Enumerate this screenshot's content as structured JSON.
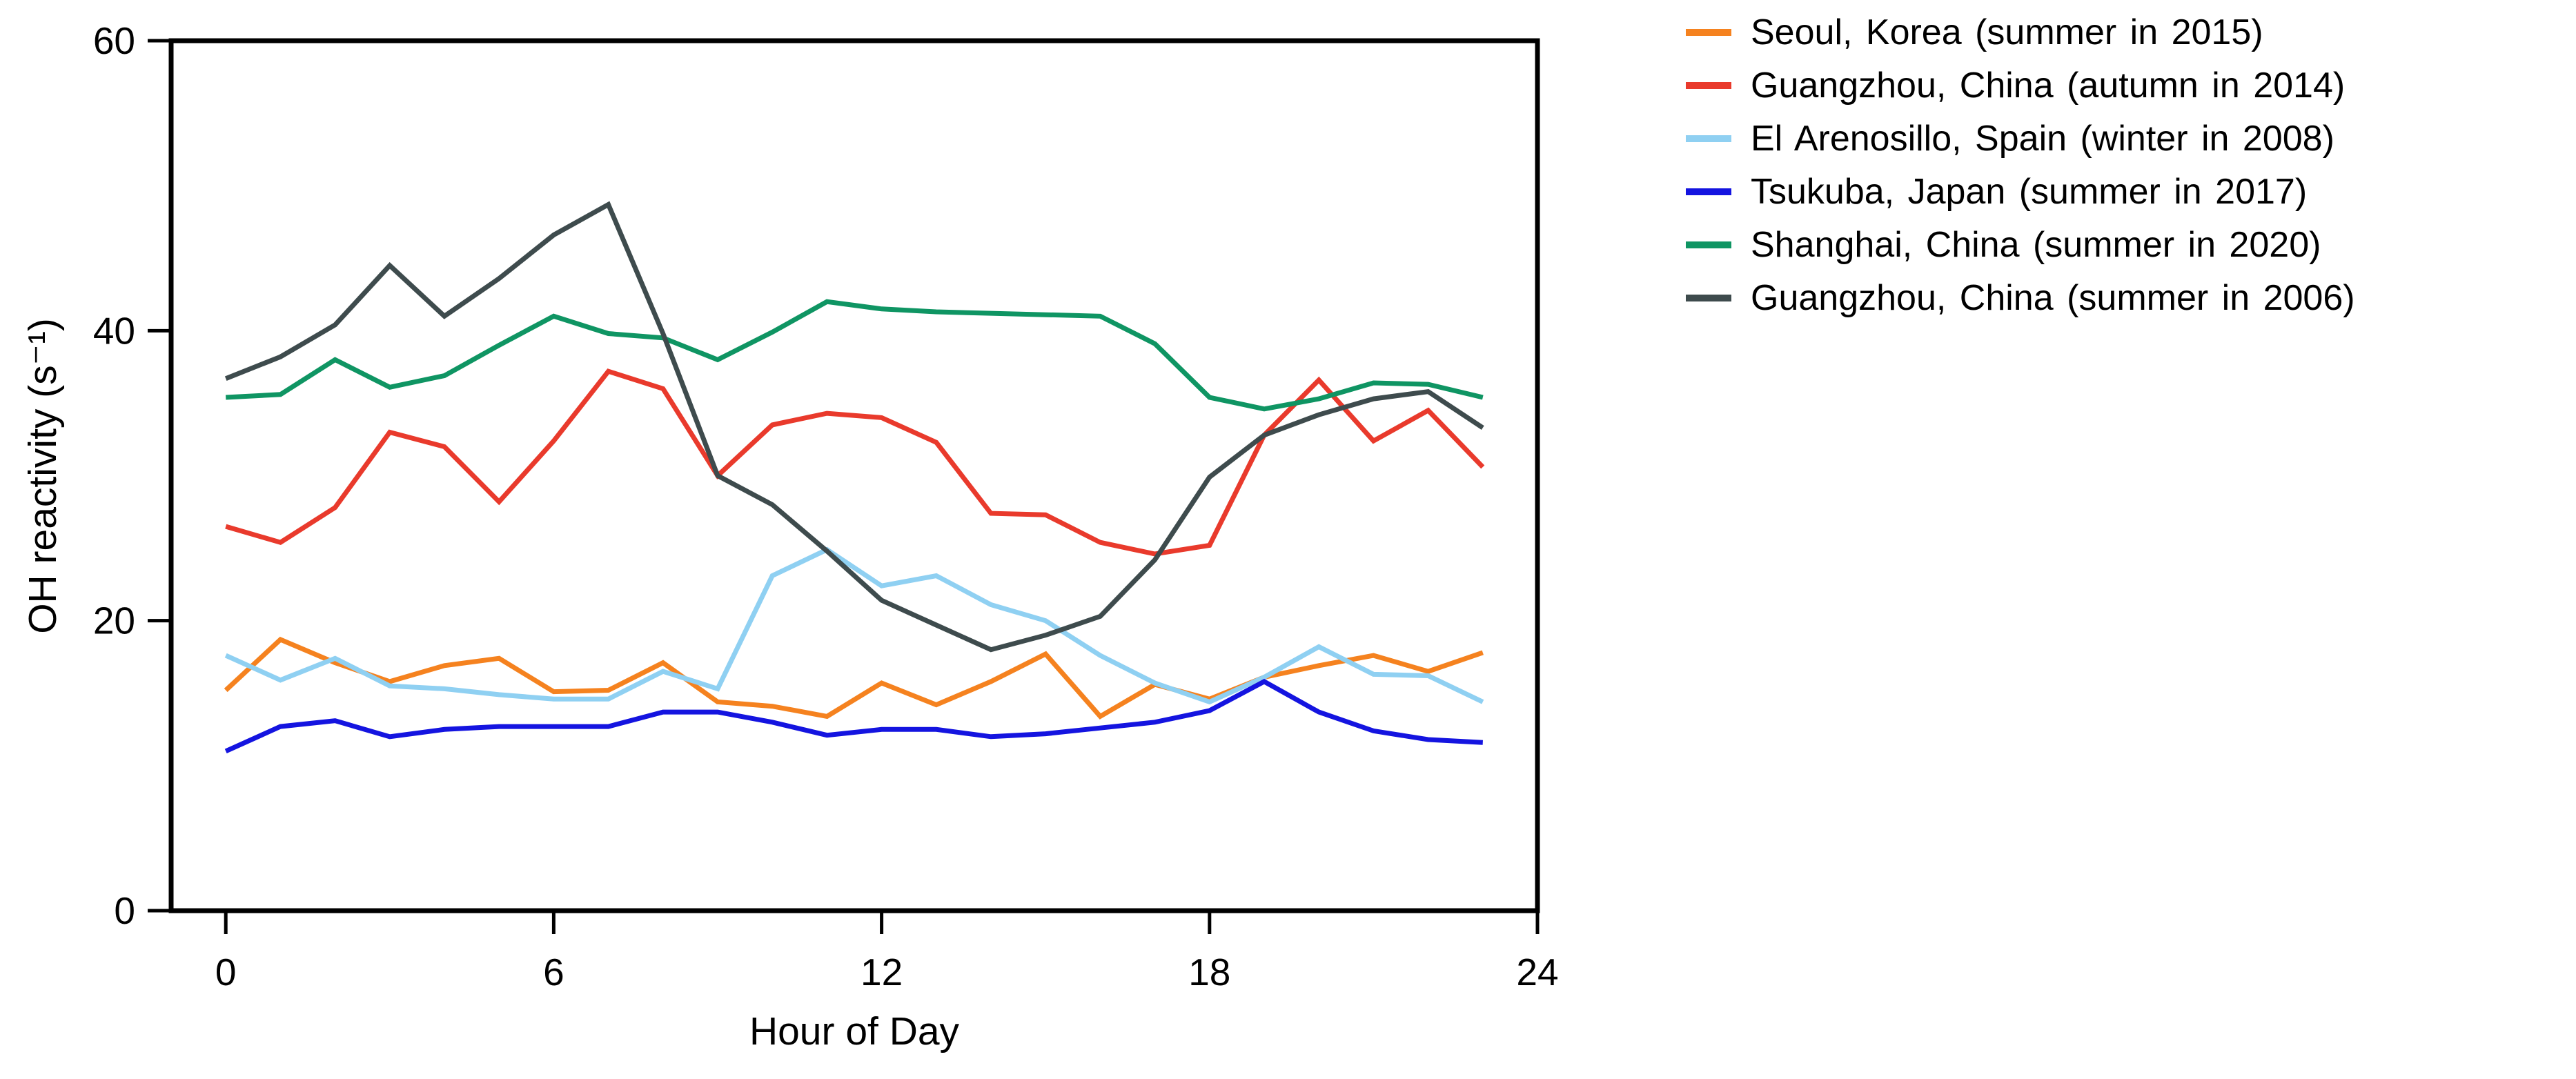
{
  "chart_data": {
    "type": "line",
    "title": "",
    "xlabel": "Hour of Day",
    "ylabel": "OH reactivity (s⁻¹)",
    "xlim": [
      -1,
      24
    ],
    "ylim": [
      0,
      60
    ],
    "x_ticks": [
      0,
      6,
      12,
      18,
      24
    ],
    "y_ticks": [
      0,
      20,
      40,
      60
    ],
    "grid": false,
    "legend_position": "right",
    "x": [
      0,
      1,
      2,
      3,
      4,
      5,
      6,
      7,
      8,
      9,
      10,
      11,
      12,
      13,
      14,
      15,
      16,
      17,
      18,
      19,
      20,
      21,
      22,
      23
    ],
    "series": [
      {
        "name": "Seoul, Korea (summer in 2015)",
        "color": "#F5821F",
        "values": [
          15.2,
          18.7,
          17.1,
          15.8,
          16.9,
          17.4,
          15.1,
          15.2,
          17.1,
          14.4,
          14.1,
          13.4,
          15.7,
          14.2,
          15.8,
          17.7,
          13.4,
          15.6,
          14.6,
          16.1,
          16.9,
          17.6,
          16.5,
          17.8
        ]
      },
      {
        "name": "Guangzhou, China (autumn in 2014)",
        "color": "#E93A2C",
        "values": [
          26.5,
          25.4,
          27.8,
          33.0,
          32.0,
          28.2,
          32.4,
          37.2,
          36.0,
          30.0,
          33.5,
          34.3,
          34.0,
          32.3,
          27.4,
          27.3,
          25.4,
          24.6,
          25.2,
          32.8,
          36.6,
          32.4,
          34.5,
          30.6
        ]
      },
      {
        "name": "El Arenosillo, Spain (winter in 2008)",
        "color": "#8FD0F2",
        "values": [
          17.6,
          15.9,
          17.4,
          15.5,
          15.3,
          14.9,
          14.6,
          14.6,
          16.5,
          15.3,
          23.1,
          24.9,
          22.4,
          23.1,
          21.1,
          20.0,
          17.6,
          15.7,
          14.4,
          16.1,
          18.2,
          16.3,
          16.2,
          14.4
        ]
      },
      {
        "name": "Tsukuba, Japan (summer in 2017)",
        "color": "#1414E0",
        "values": [
          11.0,
          12.7,
          13.1,
          12.0,
          12.5,
          12.7,
          12.7,
          12.7,
          13.7,
          13.7,
          13.0,
          12.1,
          12.5,
          12.5,
          12.0,
          12.2,
          12.6,
          13.0,
          13.8,
          15.8,
          13.7,
          12.4,
          11.8,
          11.6
        ]
      },
      {
        "name": "Shanghai, China (summer in 2020)",
        "color": "#0F9563",
        "values": [
          35.4,
          35.6,
          38.0,
          36.1,
          36.9,
          39.0,
          41.0,
          39.8,
          39.5,
          38.0,
          39.9,
          42.0,
          41.5,
          41.3,
          41.2,
          41.1,
          41.0,
          39.1,
          35.4,
          34.6,
          35.3,
          36.4,
          36.3,
          35.4
        ]
      },
      {
        "name": "Guangzhou, China (summer in 2006)",
        "color": "#3E4B4D",
        "values": [
          36.7,
          38.2,
          40.4,
          44.5,
          41.0,
          43.6,
          46.6,
          48.7,
          39.8,
          30.0,
          28.0,
          24.8,
          21.4,
          19.7,
          18.0,
          19.0,
          20.3,
          24.2,
          29.9,
          32.8,
          34.2,
          35.3,
          35.8,
          33.3
        ]
      }
    ]
  }
}
